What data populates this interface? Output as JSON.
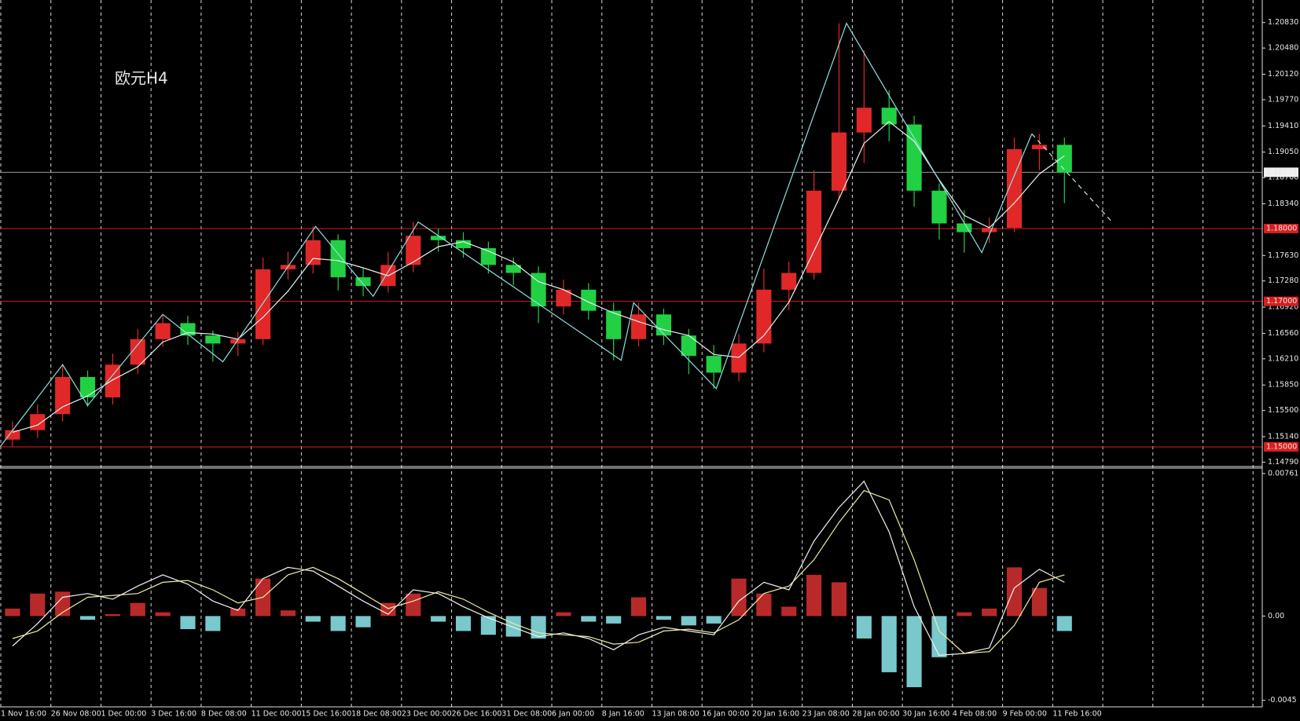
{
  "chart_data": [
    {
      "type": "candlestick",
      "title": "欧元H4",
      "title_color": "#e04848",
      "up_color": "#e02828",
      "down_color": "#22d044",
      "open": [
        1.151,
        1.1523,
        1.1545,
        1.1596,
        1.1568,
        1.1613,
        1.1648,
        1.167,
        1.1653,
        1.1642,
        1.1648,
        1.1744,
        1.175,
        1.1784,
        1.1733,
        1.1721,
        1.175,
        1.179,
        1.1784,
        1.1773,
        1.175,
        1.1739,
        1.1693,
        1.1716,
        1.1687,
        1.1648,
        1.1682,
        1.1653,
        1.1625,
        1.1602,
        1.1642,
        1.1716,
        1.1739,
        1.1852,
        1.1932,
        1.1966,
        1.1943,
        1.1852,
        1.1807,
        1.1795,
        1.1801,
        1.1909,
        1.1915
      ],
      "high": [
        1.1535,
        1.1558,
        1.1614,
        1.1605,
        1.1628,
        1.1662,
        1.1683,
        1.168,
        1.166,
        1.1658,
        1.176,
        1.1768,
        1.1803,
        1.1792,
        1.1745,
        1.1768,
        1.1809,
        1.18,
        1.1795,
        1.1782,
        1.176,
        1.1748,
        1.173,
        1.1725,
        1.1698,
        1.1698,
        1.169,
        1.1662,
        1.164,
        1.1655,
        1.1745,
        1.1755,
        1.188,
        1.2082,
        1.2045,
        1.199,
        1.1955,
        1.1862,
        1.1825,
        1.1815,
        1.1925,
        1.193,
        1.1925
      ],
      "low": [
        1.15,
        1.1512,
        1.1535,
        1.1555,
        1.1558,
        1.16,
        1.1638,
        1.164,
        1.1617,
        1.1625,
        1.164,
        1.173,
        1.1738,
        1.1715,
        1.1707,
        1.1712,
        1.174,
        1.1768,
        1.176,
        1.1738,
        1.1722,
        1.167,
        1.1682,
        1.1675,
        1.1619,
        1.1638,
        1.164,
        1.16,
        1.158,
        1.159,
        1.163,
        1.1688,
        1.173,
        1.184,
        1.189,
        1.192,
        1.183,
        1.1785,
        1.1767,
        1.178,
        1.1795,
        1.188,
        1.1835
      ],
      "close": [
        1.1523,
        1.1545,
        1.1596,
        1.1568,
        1.1613,
        1.1648,
        1.167,
        1.1653,
        1.1642,
        1.1648,
        1.1744,
        1.175,
        1.1784,
        1.1733,
        1.1721,
        1.175,
        1.179,
        1.1784,
        1.1773,
        1.175,
        1.1739,
        1.1693,
        1.1716,
        1.1687,
        1.1648,
        1.1682,
        1.1653,
        1.1625,
        1.1602,
        1.1642,
        1.1716,
        1.1739,
        1.1852,
        1.1932,
        1.1966,
        1.1943,
        1.1852,
        1.1807,
        1.1795,
        1.1801,
        1.1909,
        1.1915,
        1.1877
      ],
      "series": [
        {
          "color": "#e8f4f4",
          "values": [
            1.152,
            1.153,
            1.1555,
            1.157,
            1.1592,
            1.161,
            1.1644,
            1.1657,
            1.1655,
            1.1648,
            1.1678,
            1.1714,
            1.1759,
            1.1756,
            1.1746,
            1.1735,
            1.1754,
            1.1775,
            1.1782,
            1.1769,
            1.1754,
            1.1727,
            1.1716,
            1.1699,
            1.1684,
            1.1672,
            1.1661,
            1.1653,
            1.1627,
            1.1623,
            1.1653,
            1.1699,
            1.1769,
            1.1841,
            1.1917,
            1.1947,
            1.192,
            1.1867,
            1.1818,
            1.1801,
            1.1835,
            1.1875,
            1.19
          ]
        }
      ],
      "zigzag": {
        "color": "#8fe0e0",
        "x": [
          -0.5,
          2.0,
          3.0,
          6.0,
          8.4,
          12.1,
          14.4,
          16.2,
          24.3,
          24.8,
          28.1,
          33.3,
          38.7,
          40.7
        ],
        "values": [
          1.15,
          1.1613,
          1.1557,
          1.1682,
          1.1617,
          1.1803,
          1.1707,
          1.1809,
          1.1619,
          1.1698,
          1.158,
          1.2082,
          1.1767,
          1.193
        ]
      },
      "projection": {
        "color": "#d0e8e8",
        "x": [
          40.7,
          43.9
        ],
        "values": [
          1.193,
          1.1809
        ]
      },
      "levels": [
        {
          "value": 1.18,
          "label": "1.18000"
        },
        {
          "value": 1.17,
          "label": "1.17000"
        },
        {
          "value": 1.15,
          "label": "1.15000"
        }
      ],
      "level_color": "#d81e1e",
      "current": {
        "value": 1.18773,
        "label": "1.18773"
      },
      "ylim": [
        1.1473,
        1.2114
      ],
      "yticks": [
        {
          "value": 1.2083,
          "label": "1.20830"
        },
        {
          "value": 1.2048,
          "label": "1.20480"
        },
        {
          "value": 1.2012,
          "label": "1.20120"
        },
        {
          "value": 1.1977,
          "label": "1.19770"
        },
        {
          "value": 1.1941,
          "label": "1.19410"
        },
        {
          "value": 1.1905,
          "label": "1.19050"
        },
        {
          "value": 1.187,
          "label": "1.18700"
        },
        {
          "value": 1.1834,
          "label": "1.18340"
        },
        {
          "value": 1.1763,
          "label": "1.17630"
        },
        {
          "value": 1.1728,
          "label": "1.17280"
        },
        {
          "value": 1.1692,
          "label": "1.16920"
        },
        {
          "value": 1.1656,
          "label": "1.16560"
        },
        {
          "value": 1.1621,
          "label": "1.16210"
        },
        {
          "value": 1.1585,
          "label": "1.15850"
        },
        {
          "value": 1.155,
          "label": "1.15500"
        },
        {
          "value": 1.1514,
          "label": "1.15140"
        },
        {
          "value": 1.1479,
          "label": "1.14790"
        }
      ]
    },
    {
      "type": "macd",
      "categories": [
        "1 Nov 16:00",
        null,
        "26 Nov 08:00",
        null,
        "1 Dec 00:00",
        null,
        "3 Dec 16:00",
        null,
        "8 Dec 08:00",
        null,
        "11 Dec 00:00",
        null,
        "15 Dec 16:00",
        null,
        "18 Dec 08:00",
        null,
        "23 Dec 00:00",
        null,
        "26 Dec 16:00",
        null,
        "31 Dec 08:00",
        null,
        "6 Jan 00:00",
        null,
        "8 Jan 16:00",
        null,
        "13 Jan 08:00",
        null,
        "16 Jan 00:00",
        null,
        "20 Jan 16:00",
        null,
        "23 Jan 08:00",
        null,
        "28 Jan 00:00",
        null,
        "30 Jan 16:00",
        null,
        "4 Feb 08:00",
        null,
        "9 Feb 00:00",
        null,
        "11 Feb 16:00"
      ],
      "values": [
        0.0004,
        0.0012,
        0.0013,
        -0.0002,
        0.0001,
        0.0007,
        0.0002,
        -0.0007,
        -0.0008,
        0.0004,
        0.002,
        0.0003,
        -0.0003,
        -0.0008,
        -0.0006,
        0.0007,
        0.0012,
        -0.0003,
        -0.0008,
        -0.001,
        -0.0011,
        -0.0012,
        0.0002,
        -0.0003,
        -0.0004,
        0.001,
        -0.0002,
        -0.0005,
        -0.0004,
        0.002,
        0.0012,
        0.0005,
        0.0022,
        0.0018,
        -0.0012,
        -0.003,
        -0.0038,
        -0.0022,
        0.0002,
        0.0004,
        0.0026,
        0.0015,
        -0.0008
      ],
      "up_color": "#b82a2a",
      "down_color": "#78c8cc",
      "series": [
        {
          "color": "#f2f2f2",
          "values": [
            -0.0016,
            -0.0004,
            0.001,
            0.0012,
            0.0009,
            0.0016,
            0.0022,
            0.0017,
            0.0008,
            0.0003,
            0.002,
            0.0026,
            0.0024,
            0.0016,
            0.0008,
            0.0001,
            0.0014,
            0.0012,
            0.0005,
            -0.0001,
            -0.0006,
            -0.0011,
            -0.0009,
            -0.0012,
            -0.0018,
            -0.001,
            -0.0006,
            -0.0008,
            -0.001,
            0.0008,
            0.0018,
            0.0014,
            0.004,
            0.0058,
            0.0072,
            0.0045,
            0.0005,
            -0.0021,
            -0.002,
            -0.0017,
            0.0015,
            0.0025,
            0.0018
          ]
        },
        {
          "color": "#f0eca0",
          "values": [
            -0.0012,
            -0.0008,
            0.0002,
            0.001,
            0.0011,
            0.0012,
            0.0018,
            0.0019,
            0.0014,
            0.0007,
            0.001,
            0.0022,
            0.0026,
            0.002,
            0.0012,
            0.0004,
            0.0008,
            0.0013,
            0.0009,
            0.0002,
            -0.0004,
            -0.0009,
            -0.001,
            -0.0011,
            -0.0015,
            -0.0014,
            -0.0008,
            -0.0007,
            -0.0009,
            -0.0002,
            0.0012,
            0.0016,
            0.003,
            0.005,
            0.0067,
            0.0062,
            0.003,
            -0.0008,
            -0.002,
            -0.0019,
            -0.0005,
            0.0018,
            0.0022
          ]
        }
      ],
      "ylim": [
        -0.00485,
        0.0079
      ],
      "yticks": [
        {
          "value": 0.00761,
          "label": "0.00761"
        },
        {
          "value": 0,
          "label": "0.00"
        },
        {
          "value": -0.0045,
          "label": "-0.0045"
        }
      ]
    }
  ]
}
